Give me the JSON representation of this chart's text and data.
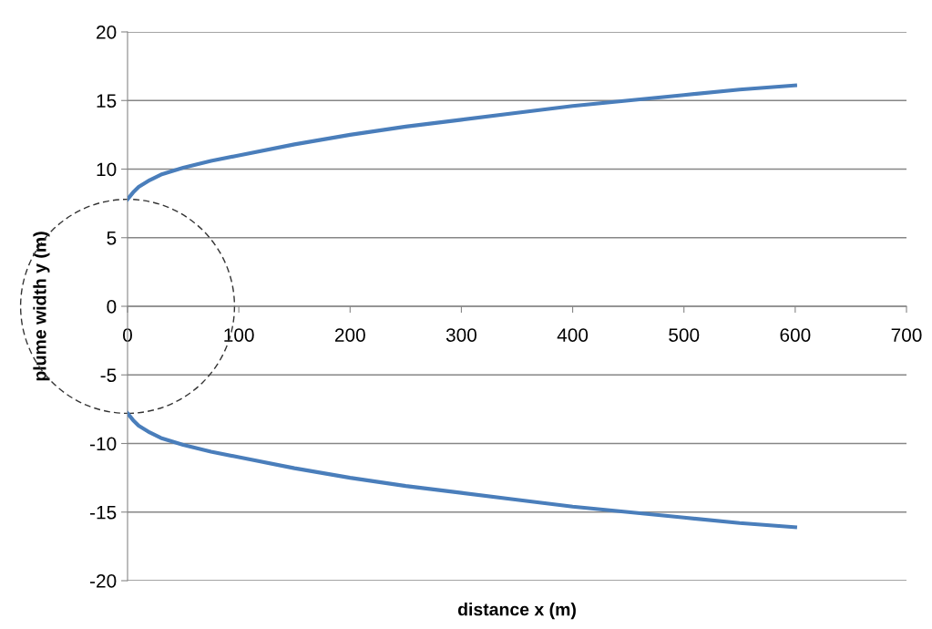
{
  "chart_data": {
    "type": "line",
    "xlabel": "distance x (m)",
    "ylabel": "plume width y (m)",
    "x": [
      0,
      5,
      10,
      20,
      30,
      50,
      75,
      100,
      150,
      200,
      250,
      300,
      350,
      400,
      450,
      500,
      550,
      600
    ],
    "series": [
      {
        "color": "#4a7ebb",
        "values": [
          7.8,
          8.3,
          8.7,
          9.2,
          9.6,
          10.1,
          10.6,
          11.0,
          11.8,
          12.5,
          13.1,
          13.6,
          14.1,
          14.6,
          15.0,
          15.4,
          15.8,
          16.1
        ]
      },
      {
        "color": "#4a7ebb",
        "values": [
          -7.8,
          -8.3,
          -8.7,
          -9.2,
          -9.6,
          -10.1,
          -10.6,
          -11.0,
          -11.8,
          -12.5,
          -13.1,
          -13.6,
          -14.1,
          -14.6,
          -15.0,
          -15.4,
          -15.8,
          -16.1
        ]
      }
    ],
    "xlim": [
      0,
      700
    ],
    "xticks": [
      0,
      100,
      200,
      300,
      400,
      500,
      600,
      700
    ],
    "ylim": [
      -20,
      20
    ],
    "yticks": [
      -20,
      -15,
      -10,
      -5,
      0,
      5,
      10,
      15,
      20
    ],
    "grid": "y",
    "legend": false,
    "marker": "none",
    "line_style": "solid"
  }
}
